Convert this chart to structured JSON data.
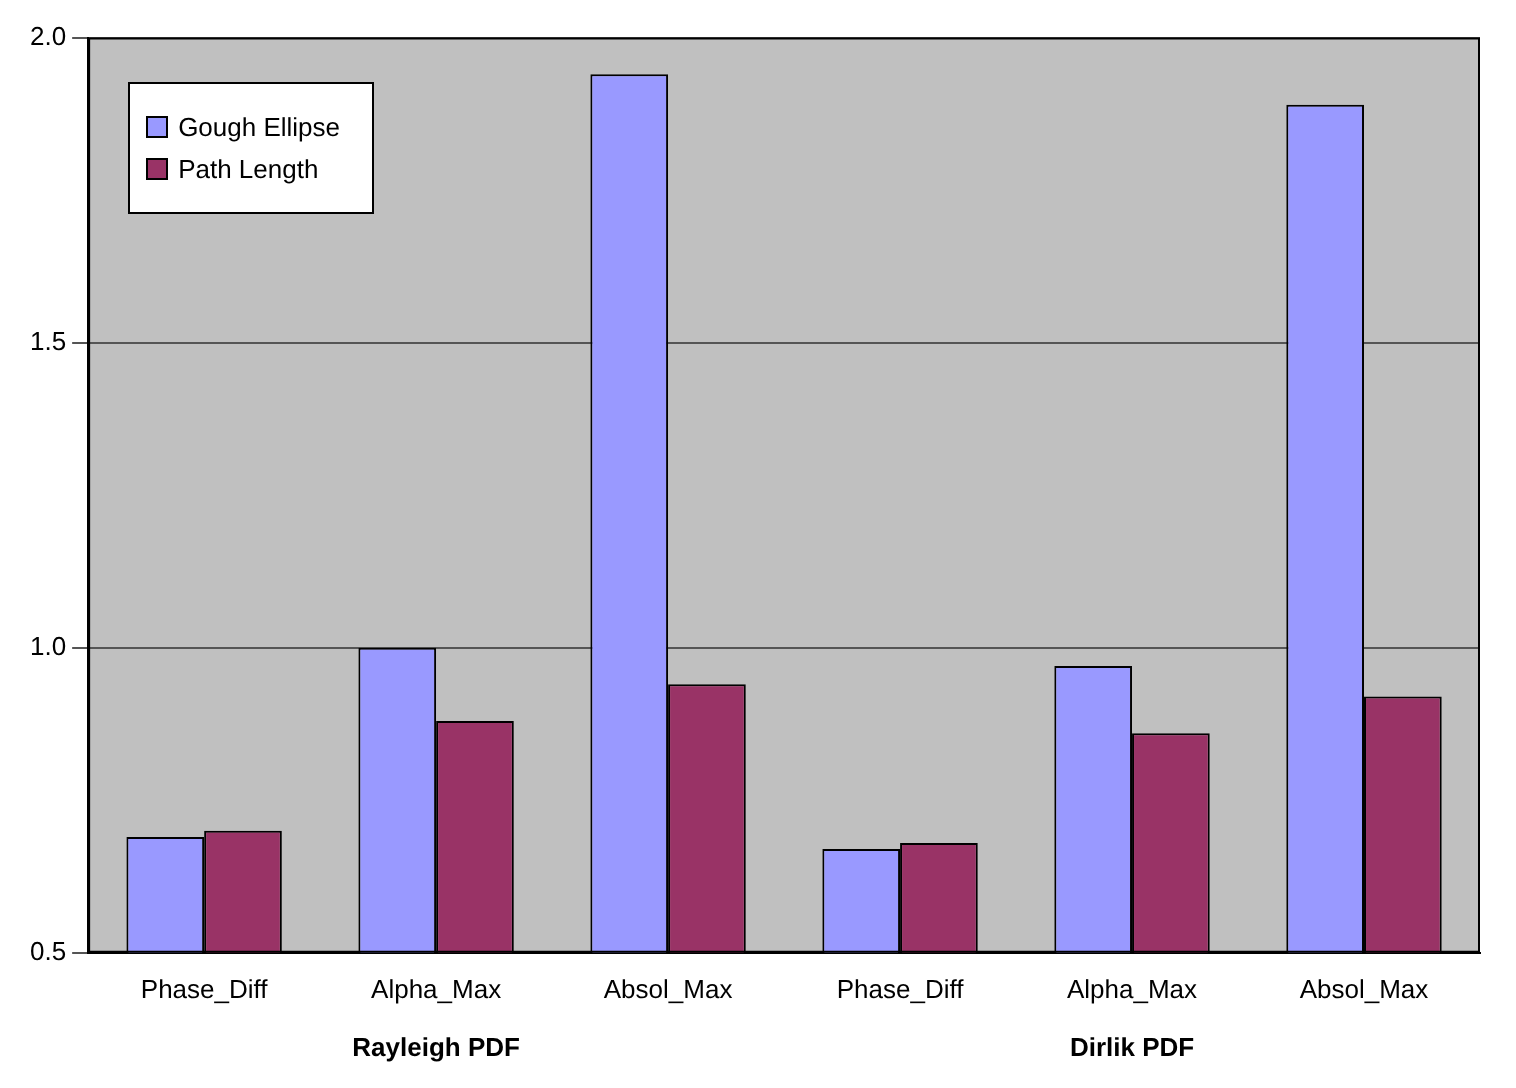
{
  "chart_data": {
    "type": "bar",
    "categories": [
      "Phase_Diff",
      "Alpha_Max",
      "Absol_Max",
      "Phase_Diff",
      "Alpha_Max",
      "Absol_Max"
    ],
    "series": [
      {
        "name": "Gough Ellipse",
        "color": "#9999ff",
        "values": [
          0.69,
          1.0,
          1.94,
          0.67,
          0.97,
          1.89
        ]
      },
      {
        "name": "Path Length",
        "color": "#993366",
        "values": [
          0.7,
          0.88,
          0.94,
          0.68,
          0.86,
          0.92
        ]
      }
    ],
    "ylim": [
      0.5,
      2.0
    ],
    "yticks": [
      {
        "value": 0.5,
        "label": "0.5"
      },
      {
        "value": 1.0,
        "label": "1.0"
      },
      {
        "value": 1.5,
        "label": "1.5"
      },
      {
        "value": 2.0,
        "label": "2.0"
      }
    ],
    "grid": "y",
    "legend": "top left",
    "annotations": [
      "Rayleigh PDF",
      "Dirlik PDF"
    ]
  }
}
